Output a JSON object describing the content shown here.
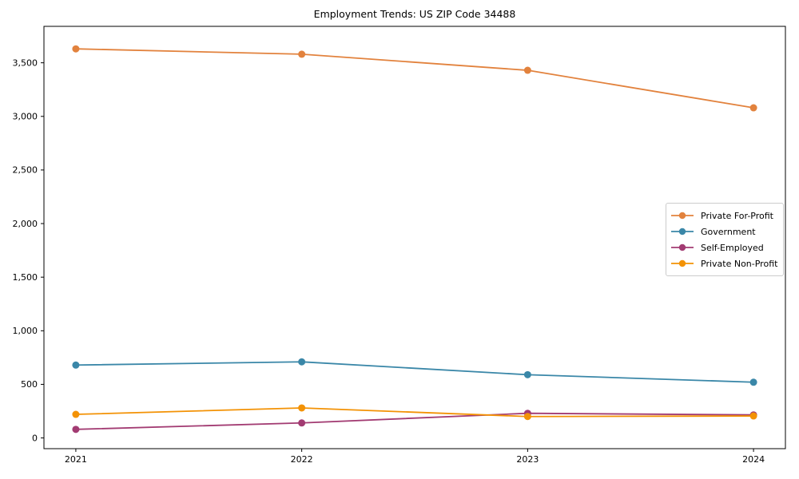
{
  "chart_data": {
    "type": "line",
    "title": "Employment Trends: US ZIP Code 34488",
    "categories": [
      "2021",
      "2022",
      "2023",
      "2024"
    ],
    "series": [
      {
        "name": "Private For-Profit",
        "color": "#E2823D",
        "values": [
          3630,
          3580,
          3430,
          3080
        ]
      },
      {
        "name": "Government",
        "color": "#3A87A8",
        "values": [
          680,
          710,
          590,
          520
        ]
      },
      {
        "name": "Self-Employed",
        "color": "#A23B72",
        "values": [
          80,
          140,
          230,
          215
        ]
      },
      {
        "name": "Private Non-Profit",
        "color": "#F39205",
        "values": [
          220,
          280,
          200,
          205
        ]
      }
    ],
    "xlabel": "",
    "ylabel": "",
    "yticks": [
      0,
      500,
      1000,
      1500,
      2000,
      2500,
      3000,
      3500
    ],
    "ylim": [
      -100,
      3840
    ],
    "grid": false,
    "legend_position": "center right",
    "axis_color": "#000000",
    "background_color": "#ffffff"
  }
}
